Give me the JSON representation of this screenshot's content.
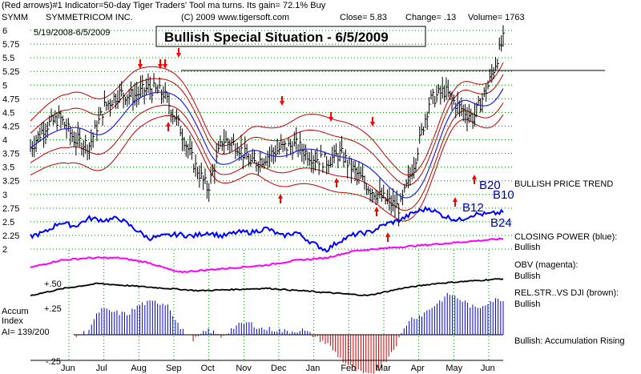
{
  "header": {
    "line1": "(Red arrows)#1 Indicator=50-day Tiger Traders' Tool ma turns. Its gain= 72.1% Buy",
    "ticker": "SYMM",
    "company": "SYMMETRICOM INC.",
    "source": "(C) 2009 www.tigersoft.com",
    "close": "Close=  5.83",
    "change": "Change= .13",
    "volume": "Volume= 1763",
    "date_range": "5/19/2008-6/5/2009"
  },
  "title_box": "Bullish Special Situation - 6/5/2009",
  "chart_data": {
    "type": "line",
    "x_labels": [
      "Jun",
      "Jul",
      "Aug",
      "Sep",
      "Oct",
      "Nov",
      "Dec",
      "Jan",
      "Feb",
      "Mar",
      "Apr",
      "May",
      "Jun"
    ],
    "price_axis": {
      "ticks": [
        "6",
        "5.75",
        "5.5",
        "5.25",
        "5",
        "4.75",
        "4.5",
        "4.25",
        "4",
        "3.75",
        "3.5",
        "3.25",
        "3",
        "2.75",
        "2.5",
        "2.25",
        "2"
      ],
      "ylim": [
        2,
        6
      ]
    },
    "accum_axis": {
      "ticks": [
        "+.50",
        "+.25",
        "-.25"
      ]
    },
    "price_close_approx": [
      3.85,
      4.25,
      4.4,
      4.0,
      3.9,
      4.6,
      4.85,
      4.8,
      4.95,
      4.85,
      4.3,
      3.6,
      3.1,
      4.0,
      3.9,
      3.55,
      3.7,
      3.85,
      3.9,
      3.7,
      3.6,
      3.75,
      3.4,
      3.1,
      2.9,
      2.75,
      3.6,
      4.7,
      4.9,
      4.6,
      4.4,
      5.0,
      5.83
    ],
    "closing_power_approx": [
      2.2,
      2.3,
      2.55,
      2.45,
      2.65,
      2.6,
      2.65,
      2.4,
      2.15,
      2.2,
      2.25,
      2.2,
      2.3,
      2.2,
      2.3,
      2.3,
      2.4,
      2.2,
      2.3,
      2.05,
      1.85,
      2.1,
      2.25,
      2.3,
      2.5,
      2.6,
      2.8,
      2.9,
      2.7,
      2.6,
      2.75,
      2.75,
      2.8
    ],
    "accumulation_index_approx": [
      -0.02,
      0.03,
      0.25,
      0.22,
      0.2,
      0.3,
      0.32,
      0.3,
      0.05,
      -0.05,
      0.05,
      -0.02,
      0.08,
      0.12,
      0.06,
      0.05,
      0.03,
      0.05,
      -0.02,
      -0.1,
      -0.25,
      -0.35,
      -0.4,
      -0.3,
      -0.1,
      0.15,
      0.2,
      0.3,
      0.4,
      0.33,
      0.25,
      0.33,
      0.35
    ],
    "annotations": [
      {
        "text": "B20"
      },
      {
        "text": "B10"
      },
      {
        "text": "B12"
      },
      {
        "text": "B24"
      }
    ]
  },
  "side_labels": {
    "price_trend": "BULLISH PRICE TREND",
    "closing_power": "CLOSING POWER (blue):",
    "closing_power_status": "Bullish",
    "obv": "OBV (magenta):",
    "obv_status": "Bullish",
    "rel_str": "REL.STR..VS DJI (brown):",
    "rel_str_status": "Bullish",
    "accum_status": "Bullish: Accumulation Rising"
  },
  "accum_box": {
    "line1": "Accum",
    "line2": "Index",
    "line3": "AI= 139/200"
  },
  "colors": {
    "price": "#000000",
    "bands": "#c00000",
    "ma": "#2222dd",
    "closing_power": "#0000ff",
    "obv": "#ff00ff",
    "accum_pos": "#0000cc",
    "accum_neg": "#cc0000",
    "arrow": "#ff0000",
    "grid": "#008000"
  }
}
